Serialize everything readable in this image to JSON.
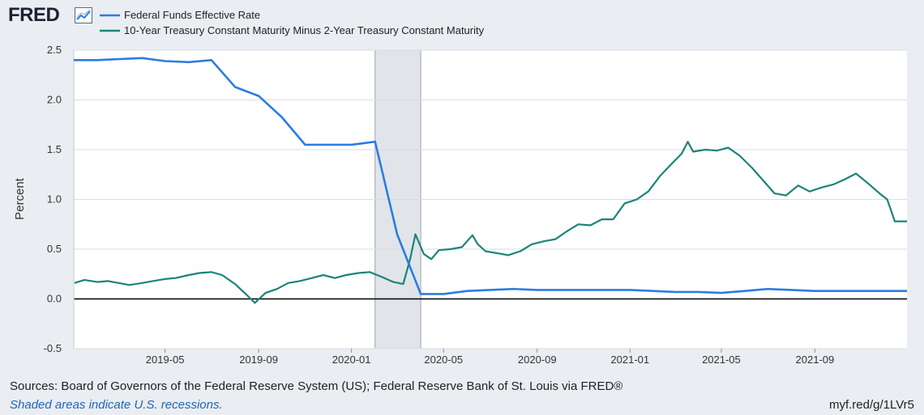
{
  "brand": {
    "name": "FRED",
    "icon": "trend-chart-icon"
  },
  "footer": {
    "sources": "Sources: Board of Governors of the Federal Reserve System (US); Federal Reserve Bank of St. Louis via FRED®",
    "recession_note": "Shaded areas indicate U.S. recessions.",
    "short_url": "myf.red/g/1LVr5"
  },
  "colors": {
    "fed_funds": "#2b7de0",
    "spread": "#1b8479",
    "recession": "#e1e5ea",
    "background": "#eaedf2",
    "plot": "#ffffff"
  },
  "chart_data": {
    "type": "line",
    "title": "",
    "ylabel": "Percent",
    "ylim": [
      -0.5,
      2.5
    ],
    "yticks": [
      -0.5,
      0.0,
      0.5,
      1.0,
      1.5,
      2.0,
      2.5
    ],
    "ytick_labels": [
      "-0.5",
      "0.0",
      "0.5",
      "1.0",
      "1.5",
      "2.0",
      "2.5"
    ],
    "xlim": [
      "2019-01-01",
      "2021-12-31"
    ],
    "xticks": [
      "2019-05-01",
      "2019-09-01",
      "2020-01-01",
      "2020-05-01",
      "2020-09-01",
      "2021-01-01",
      "2021-05-01",
      "2021-09-01"
    ],
    "xtick_labels": [
      "2019-05",
      "2019-09",
      "2020-01",
      "2020-05",
      "2020-09",
      "2021-01",
      "2021-05",
      "2021-09"
    ],
    "grid": true,
    "legend": "top-left",
    "recessions": [
      {
        "start": "2020-02-01",
        "end": "2020-04-01"
      }
    ],
    "series": [
      {
        "name": "Federal Funds Effective Rate",
        "color": "#2b7de0",
        "x": [
          "2019-01-01",
          "2019-02-01",
          "2019-03-01",
          "2019-04-01",
          "2019-05-01",
          "2019-06-01",
          "2019-07-01",
          "2019-08-01",
          "2019-09-01",
          "2019-10-01",
          "2019-11-01",
          "2019-12-01",
          "2020-01-01",
          "2020-02-01",
          "2020-03-01",
          "2020-04-01",
          "2020-05-01",
          "2020-06-01",
          "2020-07-01",
          "2020-08-01",
          "2020-09-01",
          "2020-10-01",
          "2020-11-01",
          "2020-12-01",
          "2021-01-01",
          "2021-02-01",
          "2021-03-01",
          "2021-04-01",
          "2021-05-01",
          "2021-06-01",
          "2021-07-01",
          "2021-08-01",
          "2021-09-01",
          "2021-10-01",
          "2021-11-01",
          "2021-12-01",
          "2021-12-31"
        ],
        "values": [
          2.4,
          2.4,
          2.41,
          2.42,
          2.39,
          2.38,
          2.4,
          2.13,
          2.04,
          1.83,
          1.55,
          1.55,
          1.55,
          1.58,
          0.65,
          0.05,
          0.05,
          0.08,
          0.09,
          0.1,
          0.09,
          0.09,
          0.09,
          0.09,
          0.09,
          0.08,
          0.07,
          0.07,
          0.06,
          0.08,
          0.1,
          0.09,
          0.08,
          0.08,
          0.08,
          0.08,
          0.08
        ]
      },
      {
        "name": "10-Year Treasury Constant Maturity Minus 2-Year Treasury Constant Maturity",
        "color": "#1b8479",
        "x": [
          "2019-01-02",
          "2019-01-15",
          "2019-02-01",
          "2019-02-15",
          "2019-03-01",
          "2019-03-15",
          "2019-04-01",
          "2019-04-15",
          "2019-05-01",
          "2019-05-15",
          "2019-06-01",
          "2019-06-15",
          "2019-07-01",
          "2019-07-15",
          "2019-08-01",
          "2019-08-15",
          "2019-08-27",
          "2019-09-10",
          "2019-09-25",
          "2019-10-10",
          "2019-10-25",
          "2019-11-10",
          "2019-11-25",
          "2019-12-10",
          "2019-12-25",
          "2020-01-10",
          "2020-01-25",
          "2020-02-10",
          "2020-02-25",
          "2020-03-09",
          "2020-03-18",
          "2020-03-25",
          "2020-04-05",
          "2020-04-15",
          "2020-04-25",
          "2020-05-10",
          "2020-05-25",
          "2020-06-08",
          "2020-06-15",
          "2020-06-25",
          "2020-07-10",
          "2020-07-25",
          "2020-08-10",
          "2020-08-25",
          "2020-09-10",
          "2020-09-25",
          "2020-10-10",
          "2020-10-25",
          "2020-11-10",
          "2020-11-25",
          "2020-12-10",
          "2020-12-25",
          "2021-01-10",
          "2021-01-25",
          "2021-02-10",
          "2021-02-25",
          "2021-03-10",
          "2021-03-18",
          "2021-03-25",
          "2021-04-10",
          "2021-04-25",
          "2021-05-10",
          "2021-05-25",
          "2021-06-10",
          "2021-06-25",
          "2021-07-10",
          "2021-07-25",
          "2021-08-10",
          "2021-08-25",
          "2021-09-10",
          "2021-09-25",
          "2021-10-10",
          "2021-10-25",
          "2021-11-10",
          "2021-11-25",
          "2021-12-05",
          "2021-12-15",
          "2021-12-31"
        ],
        "values": [
          0.16,
          0.19,
          0.17,
          0.18,
          0.16,
          0.14,
          0.16,
          0.18,
          0.2,
          0.21,
          0.24,
          0.26,
          0.27,
          0.24,
          0.15,
          0.05,
          -0.04,
          0.06,
          0.1,
          0.16,
          0.18,
          0.21,
          0.24,
          0.21,
          0.24,
          0.26,
          0.27,
          0.22,
          0.17,
          0.15,
          0.4,
          0.65,
          0.45,
          0.4,
          0.49,
          0.5,
          0.52,
          0.64,
          0.55,
          0.48,
          0.46,
          0.44,
          0.48,
          0.55,
          0.58,
          0.6,
          0.68,
          0.75,
          0.74,
          0.8,
          0.8,
          0.96,
          1.0,
          1.08,
          1.24,
          1.36,
          1.46,
          1.58,
          1.48,
          1.5,
          1.49,
          1.52,
          1.44,
          1.32,
          1.19,
          1.06,
          1.04,
          1.14,
          1.08,
          1.12,
          1.15,
          1.2,
          1.26,
          1.16,
          1.06,
          1.0,
          0.78,
          0.78
        ]
      }
    ]
  }
}
